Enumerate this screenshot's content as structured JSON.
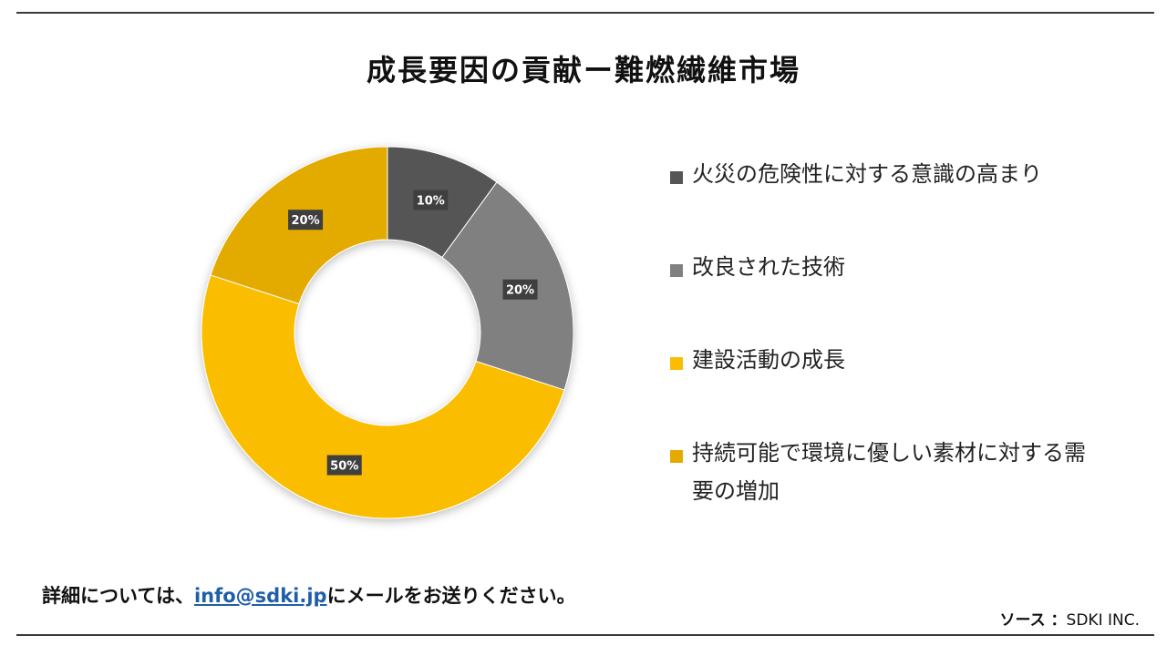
{
  "title": "成長要因の貢献ー難燃繊維市場",
  "footer": {
    "prefix": "詳細については、",
    "email": "info@sdki.jp",
    "suffix": "にメールをお送りください。"
  },
  "source": {
    "label": "ソース ：",
    "value": "SDKI INC."
  },
  "chart_data": {
    "type": "pie",
    "donut": true,
    "legend_position": "right",
    "categories": [
      "火災の危険性に対する意識の高まり",
      "改良された技術",
      "建設活動の成長",
      "持続可能で環境に優しい素材に対する需要の増加"
    ],
    "values": [
      10,
      20,
      50,
      20
    ],
    "value_labels": [
      "10%",
      "20%",
      "50%",
      "20%"
    ],
    "colors": [
      "#555555",
      "#808080",
      "#fbbd03",
      "#e3ab00"
    ]
  }
}
